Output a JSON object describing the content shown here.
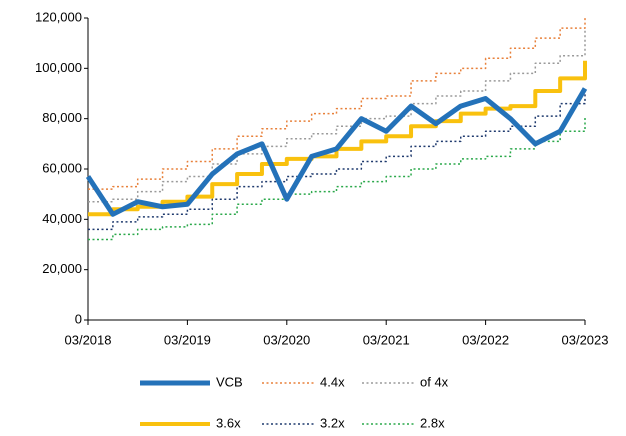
{
  "chart_data": {
    "type": "line",
    "x": [
      "03/2018",
      "06/2018",
      "09/2018",
      "12/2018",
      "03/2019",
      "06/2019",
      "09/2019",
      "12/2019",
      "03/2020",
      "06/2020",
      "09/2020",
      "12/2020",
      "03/2021",
      "06/2021",
      "09/2021",
      "12/2021",
      "03/2022",
      "06/2022",
      "09/2022",
      "12/2022",
      "03/2023"
    ],
    "xticks": [
      "03/2018",
      "03/2019",
      "03/2020",
      "03/2021",
      "03/2022",
      "03/2023"
    ],
    "ylim": [
      0,
      120000
    ],
    "yticks": [
      0,
      {
        "value": 20000,
        "label": "20,000"
      },
      {
        "value": 40000,
        "label": "40,000"
      },
      {
        "value": 60000,
        "label": "60,000"
      },
      {
        "value": 80000,
        "label": "80,000"
      },
      {
        "value": 100000,
        "label": "100,000"
      },
      {
        "value": 120000,
        "label": "120,000"
      }
    ],
    "grid": false,
    "legend": "bottom",
    "series": [
      {
        "name": "VCB",
        "color": "#2472b9",
        "linewidth": 5,
        "dashed": false,
        "step": false,
        "values": [
          57000,
          42000,
          47000,
          45000,
          46000,
          58000,
          66000,
          70000,
          48000,
          65000,
          68000,
          80000,
          75000,
          85000,
          78000,
          85000,
          88000,
          80000,
          70000,
          75000,
          92000
        ]
      },
      {
        "name": "4.4x",
        "color": "#e8803a",
        "linewidth": 1.5,
        "dashed": true,
        "step": true,
        "values": [
          52000,
          53000,
          56000,
          60000,
          63000,
          68000,
          73000,
          76000,
          79000,
          82000,
          84000,
          88000,
          89000,
          95000,
          98000,
          100000,
          104000,
          108000,
          112000,
          116000,
          120000
        ]
      },
      {
        "name": "of 4x",
        "color": "#9a9a9a",
        "linewidth": 1.5,
        "dashed": true,
        "step": true,
        "values": [
          47000,
          48000,
          51000,
          55000,
          57000,
          62000,
          66000,
          69000,
          72000,
          74000,
          77000,
          80000,
          81000,
          86000,
          89000,
          91000,
          95000,
          98000,
          102000,
          105000,
          115000
        ]
      },
      {
        "name": "3.6x",
        "color": "#f9c10e",
        "linewidth": 4,
        "dashed": false,
        "step": true,
        "values": [
          42000,
          44000,
          45000,
          47000,
          49000,
          54000,
          58000,
          62000,
          64000,
          65000,
          68000,
          71000,
          73000,
          77000,
          79000,
          82000,
          84000,
          85000,
          91000,
          96000,
          103000
        ]
      },
      {
        "name": "3.2x",
        "color": "#1f3a6e",
        "linewidth": 1.5,
        "dashed": true,
        "step": true,
        "values": [
          36000,
          39000,
          41000,
          42000,
          44000,
          48000,
          53000,
          55000,
          57000,
          58000,
          60000,
          63000,
          65000,
          69000,
          71000,
          73000,
          75000,
          77000,
          81000,
          86000,
          92000
        ]
      },
      {
        "name": "2.8x",
        "color": "#2aa84a",
        "linewidth": 1.5,
        "dashed": true,
        "step": true,
        "values": [
          32000,
          34000,
          36000,
          37000,
          38000,
          42000,
          46000,
          48000,
          50000,
          51000,
          53000,
          55000,
          57000,
          60000,
          62000,
          64000,
          65000,
          68000,
          71000,
          75000,
          81000
        ]
      }
    ]
  }
}
